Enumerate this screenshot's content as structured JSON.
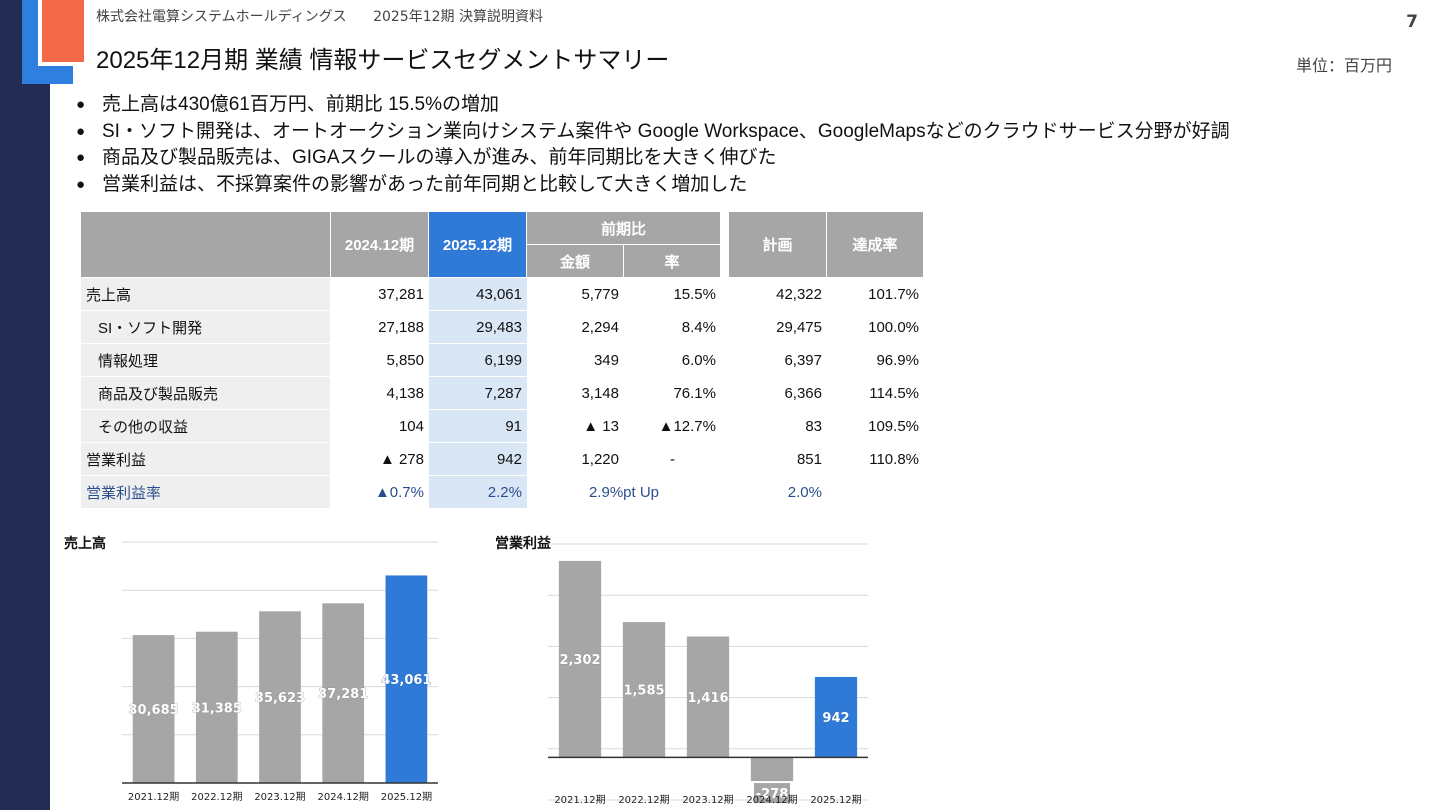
{
  "header": {
    "company": "株式会社電算システムホールディングス",
    "doc_title": "2025年12期 決算説明資料",
    "page_number": "7",
    "title": "2025年12月期 業績 情報サービスセグメントサマリー",
    "unit": "単位：百万円"
  },
  "bullets": [
    "売上高は430億61百万円、前期比 15.5%の増加",
    "SI・ソフト開発は、オートオークション業向けシステム案件や Google Workspace、GoogleMapsなどのクラウドサービス分野が好調",
    "商品及び製品販売は、GIGAスクールの導入が進み、前年同期比を大きく伸びた",
    "営業利益は、不採算案件の影響があった前年同期と比較して大きく増加した"
  ],
  "table": {
    "headers": {
      "prev": "2024.12期",
      "curr": "2025.12期",
      "yoy": "前期比",
      "amount": "金額",
      "rate": "率",
      "plan": "計画",
      "achieve": "達成率"
    },
    "rows": [
      {
        "label": "売上高",
        "prev": "37,281",
        "curr": "43,061",
        "amount": "5,779",
        "rate": "15.5%",
        "plan": "42,322",
        "achieve": "101.7%"
      },
      {
        "label": "SI・ソフト開発",
        "prev": "27,188",
        "curr": "29,483",
        "amount": "2,294",
        "rate": "8.4%",
        "plan": "29,475",
        "achieve": "100.0%"
      },
      {
        "label": "情報処理",
        "prev": "5,850",
        "curr": "6,199",
        "amount": "349",
        "rate": "6.0%",
        "plan": "6,397",
        "achieve": "96.9%"
      },
      {
        "label": "商品及び製品販売",
        "prev": "4,138",
        "curr": "7,287",
        "amount": "3,148",
        "rate": "76.1%",
        "plan": "6,366",
        "achieve": "114.5%"
      },
      {
        "label": "その他の収益",
        "prev": "104",
        "curr": "91",
        "amount": "▲ 13",
        "rate": "▲12.7%",
        "plan": "83",
        "achieve": "109.5%"
      },
      {
        "label": "営業利益",
        "prev": "▲ 278",
        "curr": "942",
        "amount": "1,220",
        "rate": "-",
        "plan": "851",
        "achieve": "110.8%"
      }
    ],
    "margin_row": {
      "label": "営業利益率",
      "prev": "▲0.7%",
      "curr": "2.2%",
      "diff": "2.9%pt Up",
      "plan": "2.0%"
    }
  },
  "colors": {
    "accent": "#2e7ad6",
    "bar": "#a6a6a6",
    "navy": "#232c52",
    "orange": "#f4694a"
  },
  "chart_data": [
    {
      "type": "bar",
      "title": "売上高",
      "categories": [
        "2021.12期",
        "2022.12期",
        "2023.12期",
        "2024.12期",
        "2025.12期"
      ],
      "values": [
        30685,
        31385,
        35623,
        37281,
        43061
      ],
      "value_labels": [
        "30,685",
        "31,385",
        "35,623",
        "37,281",
        "43,061"
      ],
      "ylim": [
        0,
        50000
      ],
      "grid": true,
      "highlight_index": 4
    },
    {
      "type": "bar",
      "title": "営業利益",
      "categories": [
        "2021.12期",
        "2022.12期",
        "2023.12期",
        "2024.12期",
        "2025.12期"
      ],
      "values": [
        2302,
        1585,
        1416,
        -278,
        942
      ],
      "value_labels": [
        "2,302",
        "1,585",
        "1,416",
        "-278",
        "942"
      ],
      "ylim": [
        -500,
        2500
      ],
      "grid": true,
      "highlight_index": 4
    }
  ]
}
